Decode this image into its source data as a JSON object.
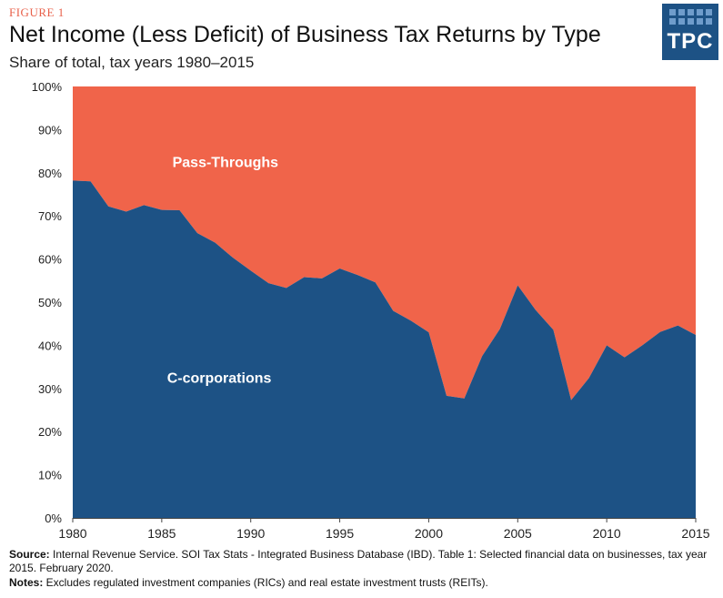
{
  "header": {
    "figure_label": "FIGURE 1",
    "title": "Net Income (Less Deficit) of Business Tax Returns by Type",
    "subtitle": "Share of total, tax years 1980–2015"
  },
  "logo": {
    "text": "TPC",
    "icon": "tpc-grid-logo"
  },
  "footer": {
    "source_label": "Source:",
    "source_text": " Internal Revenue Service. SOI Tax Stats - Integrated Business Database (IBD). Table 1: Selected financial data on businesses, tax year 2015. February 2020.",
    "notes_label": "Notes:",
    "notes_text": " Excludes regulated investment companies (RICs) and real estate investment trusts (REITs)."
  },
  "colors": {
    "pass_throughs": "#f0644a",
    "c_corporations": "#1d5285",
    "logo_bg": "#1d5285",
    "figure_label": "#e8604a"
  },
  "chart_data": {
    "type": "area",
    "stacked": true,
    "x": [
      1980,
      1981,
      1982,
      1983,
      1984,
      1985,
      1986,
      1987,
      1988,
      1989,
      1990,
      1991,
      1992,
      1993,
      1994,
      1995,
      1996,
      1997,
      1998,
      1999,
      2000,
      2001,
      2002,
      2003,
      2004,
      2005,
      2006,
      2007,
      2008,
      2009,
      2010,
      2011,
      2012,
      2013,
      2014,
      2015
    ],
    "series": [
      {
        "name": "C-corporations",
        "values": [
          78.2,
          78.0,
          72.2,
          71.0,
          72.5,
          71.4,
          71.3,
          66.0,
          63.8,
          60.3,
          57.3,
          54.4,
          53.3,
          55.8,
          55.5,
          57.8,
          56.3,
          54.6,
          48.0,
          45.7,
          43.0,
          28.3,
          27.7,
          37.5,
          43.8,
          53.9,
          48.2,
          43.6,
          27.3,
          32.4,
          40.0,
          37.2,
          40.0,
          43.1,
          44.6,
          42.4
        ]
      },
      {
        "name": "Pass-Throughs",
        "values": [
          21.8,
          22.0,
          27.8,
          29.0,
          27.5,
          28.6,
          28.7,
          34.0,
          36.2,
          39.7,
          42.7,
          45.6,
          46.7,
          44.2,
          44.5,
          42.2,
          43.7,
          45.4,
          52.0,
          54.3,
          57.0,
          71.7,
          72.3,
          62.5,
          56.2,
          46.1,
          51.8,
          56.4,
          72.7,
          67.6,
          60.0,
          62.8,
          60.0,
          56.9,
          55.4,
          57.6
        ]
      }
    ],
    "area_labels": {
      "pass_throughs": "Pass-Throughs",
      "c_corporations": "C-corporations"
    },
    "xlim": [
      1980,
      2015
    ],
    "ylim": [
      0,
      100
    ],
    "x_ticks": [
      1980,
      1985,
      1990,
      1995,
      2000,
      2005,
      2010,
      2015
    ],
    "y_ticks": [
      0,
      10,
      20,
      30,
      40,
      50,
      60,
      70,
      80,
      90,
      100
    ],
    "y_tick_labels": [
      "0%",
      "10%",
      "20%",
      "30%",
      "40%",
      "50%",
      "60%",
      "70%",
      "80%",
      "90%",
      "100%"
    ],
    "x_tick_labels": [
      "1980",
      "1985",
      "1990",
      "1995",
      "2000",
      "2005",
      "2010",
      "2015"
    ],
    "grid": false,
    "legend": "none"
  }
}
